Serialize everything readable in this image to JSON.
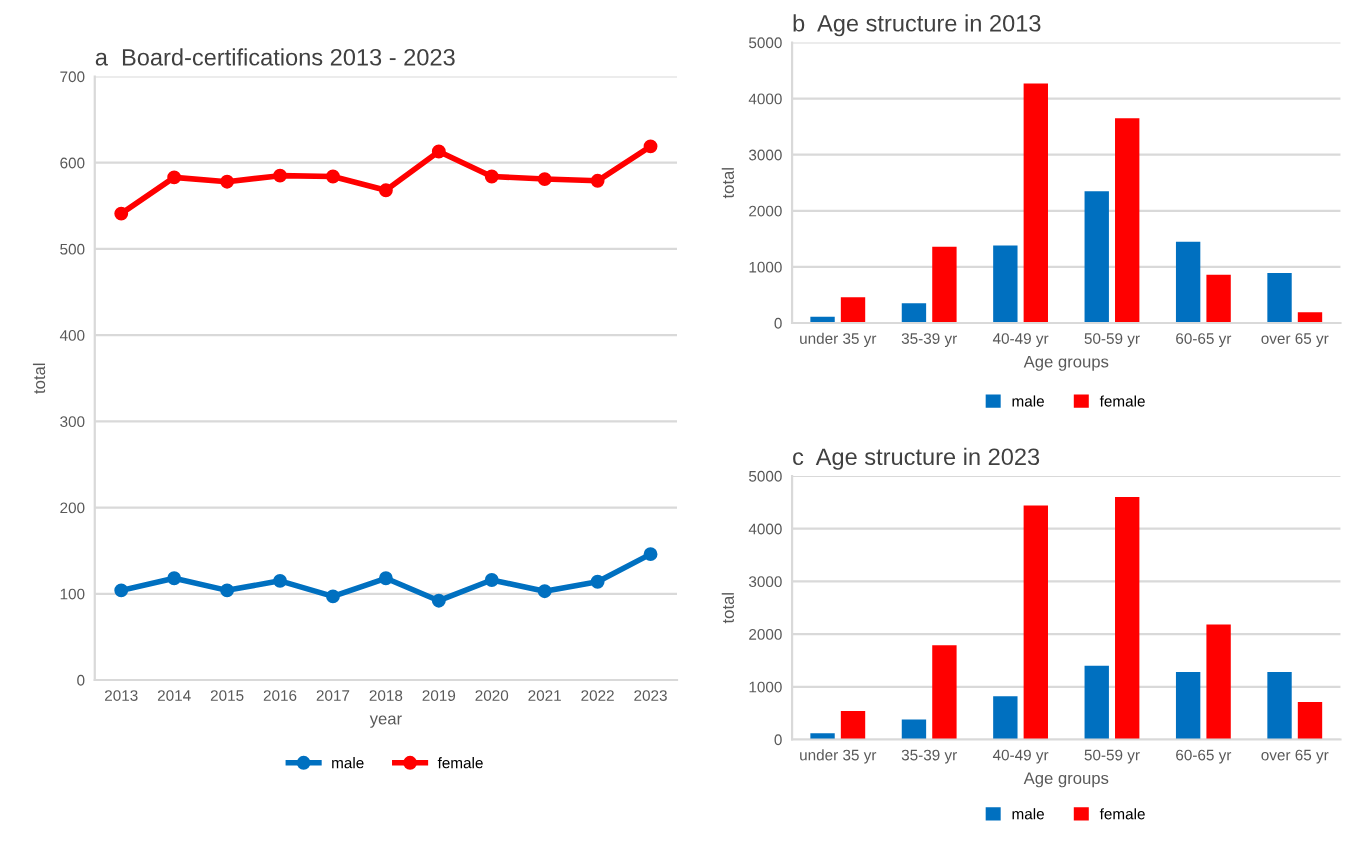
{
  "chart_data": [
    {
      "type": "line",
      "title": "a  Board-certifications 2013 - 2023",
      "xlabel": "year",
      "ylabel": "total",
      "categories": [
        "2013",
        "2014",
        "2015",
        "2016",
        "2017",
        "2018",
        "2019",
        "2020",
        "2021",
        "2022",
        "2023"
      ],
      "series": [
        {
          "name": "male",
          "color": "#0070c0",
          "values": [
            104,
            118,
            104,
            115,
            97,
            118,
            92,
            116,
            103,
            114,
            146
          ]
        },
        {
          "name": "female",
          "color": "#ff0000",
          "values": [
            541,
            583,
            578,
            585,
            584,
            568,
            613,
            584,
            581,
            579,
            619
          ]
        }
      ],
      "ylim": [
        0,
        700
      ],
      "yticks": [
        0,
        100,
        200,
        300,
        400,
        500,
        600,
        700
      ],
      "grid": "y",
      "legend": "bottom",
      "marker": "circle",
      "line_style": "solid"
    },
    {
      "type": "bar",
      "title": "b  Age structure in 2013",
      "xlabel": "Age groups",
      "ylabel": "total",
      "categories": [
        "under 35 yr",
        "35-39 yr",
        "40-49 yr",
        "50-59 yr",
        "60-65 yr",
        "over 65 yr"
      ],
      "series": [
        {
          "name": "male",
          "color": "#0070c0",
          "values": [
            110,
            350,
            1380,
            2350,
            1450,
            890
          ]
        },
        {
          "name": "female",
          "color": "#ff0000",
          "values": [
            460,
            1360,
            4270,
            3650,
            860,
            190
          ]
        }
      ],
      "ylim": [
        0,
        5000
      ],
      "yticks": [
        0,
        1000,
        2000,
        3000,
        4000,
        5000
      ],
      "grid": "y",
      "legend": "bottom"
    },
    {
      "type": "bar",
      "title": "c  Age structure in 2023",
      "xlabel": "Age groups",
      "ylabel": "total",
      "categories": [
        "under 35 yr",
        "35-39 yr",
        "40-49 yr",
        "50-59 yr",
        "60-65 yr",
        "over 65 yr"
      ],
      "series": [
        {
          "name": "male",
          "color": "#0070c0",
          "values": [
            120,
            380,
            820,
            1400,
            1280,
            1280
          ]
        },
        {
          "name": "female",
          "color": "#ff0000",
          "values": [
            540,
            1790,
            4440,
            4600,
            2180,
            710
          ]
        }
      ],
      "ylim": [
        0,
        5000
      ],
      "yticks": [
        0,
        1000,
        2000,
        3000,
        4000,
        5000
      ],
      "grid": "y",
      "legend": "bottom"
    }
  ]
}
